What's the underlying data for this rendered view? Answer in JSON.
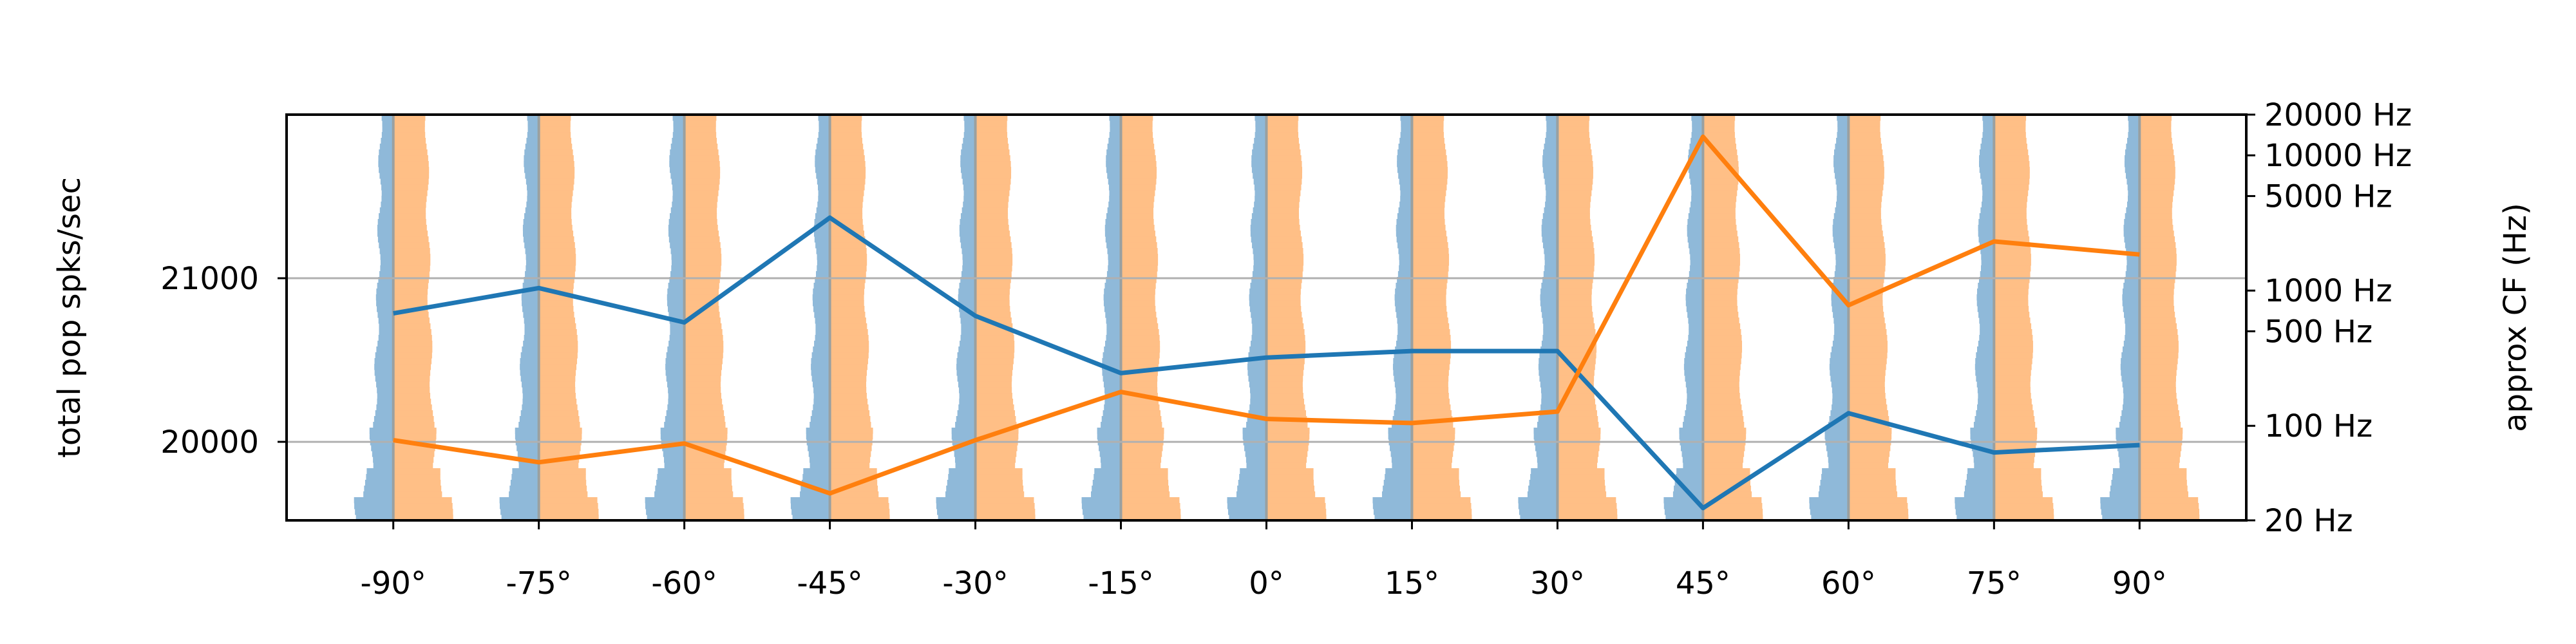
{
  "chart_data": {
    "type": "line",
    "x": [
      "-90°",
      "-75°",
      "-60°",
      "-45°",
      "-30°",
      "-15°",
      "0°",
      "15°",
      "30°",
      "45°",
      "60°",
      "75°",
      "90°"
    ],
    "xlim": [
      -101,
      101
    ],
    "ylabel": "total pop spks/sec",
    "ylim": [
      19520,
      22000
    ],
    "yticks": [
      20000,
      21000
    ],
    "y2label": "approx CF (Hz)",
    "y2ticks": [
      "20000 Hz",
      "10000 Hz",
      "5000 Hz",
      "1000 Hz",
      "500 Hz",
      "100 Hz",
      "20 Hz"
    ],
    "grid": "horizontal",
    "series": [
      {
        "color": "#1f77b4",
        "values": [
          20785,
          20940,
          20730,
          21370,
          20770,
          20420,
          20515,
          20555,
          20555,
          19595,
          20175,
          19935,
          19980
        ]
      },
      {
        "color": "#ff7f0e",
        "values": [
          20010,
          19875,
          19990,
          19685,
          20010,
          20305,
          20140,
          20115,
          20185,
          21865,
          20835,
          21225,
          21145
        ]
      }
    ],
    "distributions": {
      "colors": [
        "#8fb9d9",
        "#ffbf86"
      ],
      "overlap_color": "#9aa0a0",
      "description_levels": 70
    }
  }
}
